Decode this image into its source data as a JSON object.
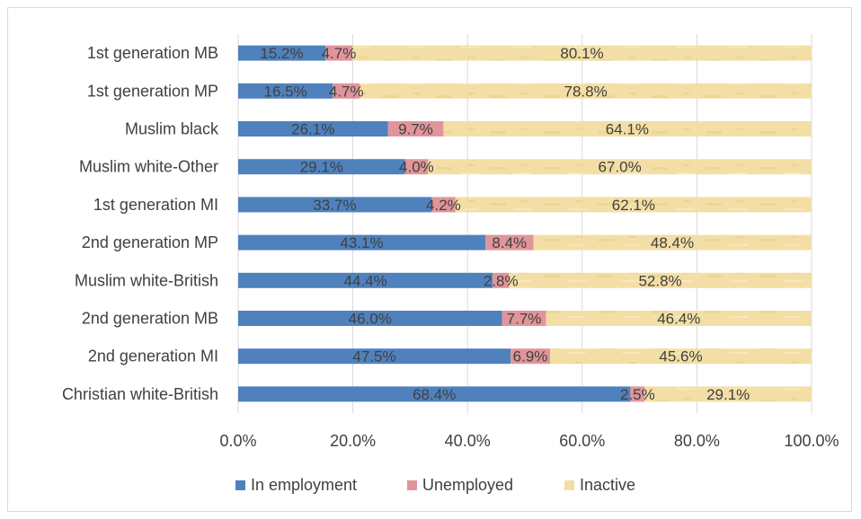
{
  "chart_data": {
    "type": "bar",
    "orientation": "horizontal",
    "stacked": true,
    "categories": [
      "1st generation MB",
      "1st generation MP",
      "Muslim black",
      "Muslim white-Other",
      "1st generation MI",
      "2nd generation MP",
      "Muslim white-British",
      "2nd generation MB",
      "2nd generation MI",
      "Christian white-British"
    ],
    "series": [
      {
        "name": "In employment",
        "color": "#4f81bd",
        "values": [
          15.2,
          16.5,
          26.1,
          29.1,
          33.7,
          43.1,
          44.4,
          46.0,
          47.5,
          68.4
        ],
        "labels": [
          "15.2%",
          "16.5%",
          "26.1%",
          "29.1%",
          "33.7%",
          "43.1%",
          "44.4%",
          "46.0%",
          "47.5%",
          "68.4%"
        ]
      },
      {
        "name": "Unemployed",
        "color": "#e0959a",
        "values": [
          4.7,
          4.7,
          9.7,
          4.0,
          4.2,
          8.4,
          2.8,
          7.7,
          6.9,
          2.5
        ],
        "labels": [
          "4.7%",
          "4.7%",
          "9.7%",
          "4.0%",
          "4.2%",
          "8.4%",
          "2.8%",
          "7.7%",
          "6.9%",
          "2.5%"
        ]
      },
      {
        "name": "Inactive",
        "color": "#f3dfa5",
        "values": [
          80.1,
          78.8,
          64.1,
          67.0,
          62.1,
          48.4,
          52.8,
          46.4,
          45.6,
          29.1
        ],
        "labels": [
          "80.1%",
          "78.8%",
          "64.1%",
          "67.0%",
          "62.1%",
          "48.4%",
          "52.8%",
          "46.4%",
          "45.6%",
          "29.1%"
        ]
      }
    ],
    "x_ticks": [
      0,
      20,
      40,
      60,
      80,
      100
    ],
    "x_tick_labels": [
      "0.0%",
      "20.0%",
      "40.0%",
      "60.0%",
      "80.0%",
      "100.0%"
    ],
    "xlim": [
      0,
      100
    ],
    "grid": "vertical",
    "legend_position": "bottom",
    "title": "",
    "xlabel": "",
    "ylabel": ""
  }
}
